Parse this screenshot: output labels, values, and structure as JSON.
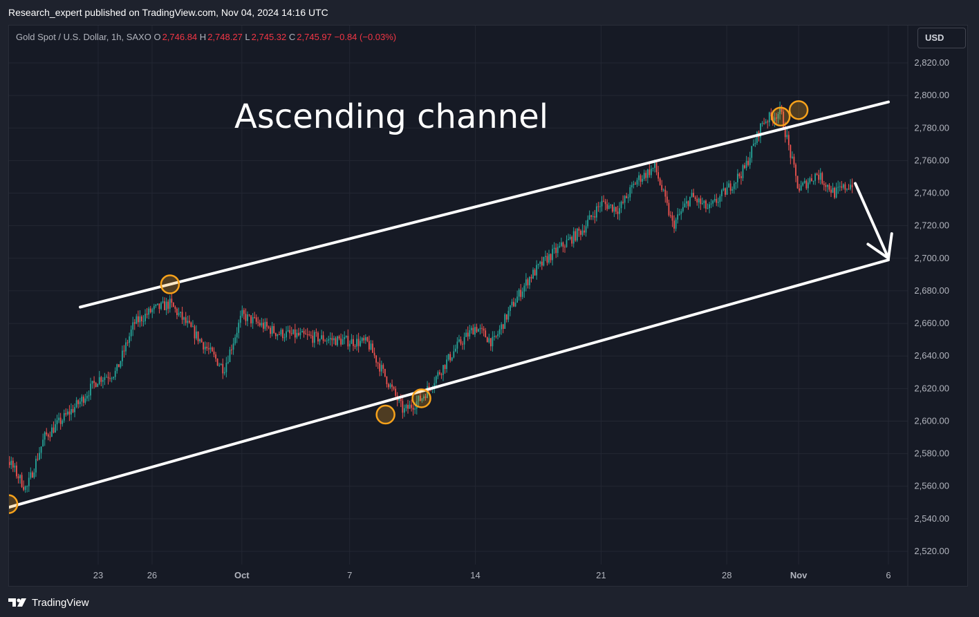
{
  "header": {
    "published_line": "Research_expert published on TradingView.com, Nov 04, 2024 14:16 UTC"
  },
  "legend": {
    "symbol": "Gold Spot / U.S. Dollar, 1h, SAXO",
    "open_label": "O",
    "open": "2,746.84",
    "high_label": "H",
    "high": "2,748.27",
    "low_label": "L",
    "low": "2,745.32",
    "close_label": "C",
    "close": "2,745.97",
    "change": "−0.84 (−0.03%)"
  },
  "currency_button": "USD",
  "annotation_text": "Ascending channel",
  "footer": {
    "brand": "TradingView"
  },
  "colors": {
    "up": "#26a69a",
    "down": "#ef5350",
    "background": "#161a25",
    "grid": "#232733",
    "channel": "#ffffff",
    "touch_marker": "#f7a21b"
  },
  "chart_data": {
    "type": "candlestick",
    "symbol": "Gold Spot / U.S. Dollar",
    "timeframe": "1h",
    "ylim": [
      2510,
      2830
    ],
    "y_ticks": [
      2520,
      2540,
      2560,
      2580,
      2600,
      2620,
      2640,
      2660,
      2680,
      2700,
      2720,
      2740,
      2760,
      2780,
      2800,
      2820
    ],
    "y_tick_labels": [
      "2,520.00",
      "2,540.00",
      "2,560.00",
      "2,580.00",
      "2,600.00",
      "2,620.00",
      "2,640.00",
      "2,660.00",
      "2,680.00",
      "2,700.00",
      "2,720.00",
      "2,740.00",
      "2,760.00",
      "2,780.00",
      "2,800.00",
      "2,820.00"
    ],
    "x_ticks": [
      {
        "date": "2024-09-23",
        "label": "23"
      },
      {
        "date": "2024-09-26",
        "label": "26"
      },
      {
        "date": "2024-10-01",
        "label": "Oct"
      },
      {
        "date": "2024-10-07",
        "label": "7"
      },
      {
        "date": "2024-10-14",
        "label": "14"
      },
      {
        "date": "2024-10-21",
        "label": "21"
      },
      {
        "date": "2024-10-28",
        "label": "28"
      },
      {
        "date": "2024-11-01",
        "label": "Nov"
      },
      {
        "date": "2024-11-06",
        "label": "6"
      }
    ],
    "price_path": [
      {
        "date": "2024-09-16",
        "price": 2578
      },
      {
        "date": "2024-09-18",
        "price": 2576
      },
      {
        "date": "2024-09-19",
        "price": 2558
      },
      {
        "date": "2024-09-20",
        "price": 2590
      },
      {
        "date": "2024-09-22",
        "price": 2612
      },
      {
        "date": "2024-09-23",
        "price": 2626
      },
      {
        "date": "2024-09-24",
        "price": 2630
      },
      {
        "date": "2024-09-25",
        "price": 2660
      },
      {
        "date": "2024-09-26",
        "price": 2668
      },
      {
        "date": "2024-09-27",
        "price": 2672
      },
      {
        "date": "2024-09-30",
        "price": 2632
      },
      {
        "date": "2024-10-01",
        "price": 2665
      },
      {
        "date": "2024-10-03",
        "price": 2654
      },
      {
        "date": "2024-10-06",
        "price": 2650
      },
      {
        "date": "2024-10-08",
        "price": 2648
      },
      {
        "date": "2024-10-10",
        "price": 2606
      },
      {
        "date": "2024-10-11",
        "price": 2614
      },
      {
        "date": "2024-10-13",
        "price": 2646
      },
      {
        "date": "2024-10-14",
        "price": 2658
      },
      {
        "date": "2024-10-15",
        "price": 2648
      },
      {
        "date": "2024-10-16",
        "price": 2670
      },
      {
        "date": "2024-10-17",
        "price": 2688
      },
      {
        "date": "2024-10-18",
        "price": 2700
      },
      {
        "date": "2024-10-20",
        "price": 2718
      },
      {
        "date": "2024-10-21",
        "price": 2734
      },
      {
        "date": "2024-10-22",
        "price": 2730
      },
      {
        "date": "2024-10-23",
        "price": 2748
      },
      {
        "date": "2024-10-24",
        "price": 2756
      },
      {
        "date": "2024-10-25",
        "price": 2720
      },
      {
        "date": "2024-10-26",
        "price": 2738
      },
      {
        "date": "2024-10-27",
        "price": 2730
      },
      {
        "date": "2024-10-28",
        "price": 2742
      },
      {
        "date": "2024-10-29",
        "price": 2755
      },
      {
        "date": "2024-10-30",
        "price": 2784
      },
      {
        "date": "2024-10-31",
        "price": 2790
      },
      {
        "date": "2024-11-01",
        "price": 2742
      },
      {
        "date": "2024-11-02",
        "price": 2752
      },
      {
        "date": "2024-11-03",
        "price": 2740
      },
      {
        "date": "2024-11-04",
        "price": 2746
      }
    ],
    "channel": {
      "upper": [
        {
          "date": "2024-09-22",
          "price": 2670
        },
        {
          "date": "2024-11-06",
          "price": 2796
        }
      ],
      "lower": [
        {
          "date": "2024-09-18",
          "price": 2547
        },
        {
          "date": "2024-11-06",
          "price": 2699
        }
      ]
    },
    "touches": [
      {
        "date": "2024-09-18",
        "price": 2549
      },
      {
        "date": "2024-09-27",
        "price": 2684
      },
      {
        "date": "2024-10-09",
        "price": 2604
      },
      {
        "date": "2024-10-11",
        "price": 2614
      },
      {
        "date": "2024-10-31",
        "price": 2787
      },
      {
        "date": "2024-11-01",
        "price": 2791
      }
    ],
    "projection_arrow": {
      "from": {
        "date": "2024-11-04",
        "price": 2746
      },
      "to": {
        "date": "2024-11-06",
        "price": 2700
      }
    }
  }
}
